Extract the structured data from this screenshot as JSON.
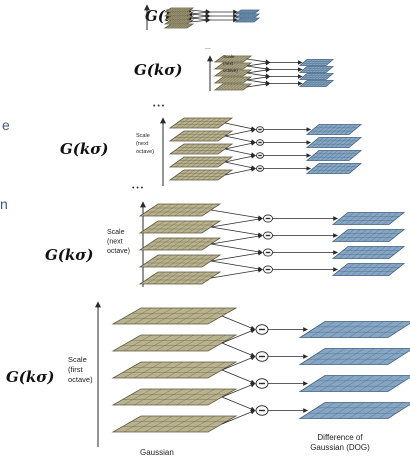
{
  "formula": "G(kσ)",
  "colors": {
    "gaussian_fill": "#b8b28e",
    "gaussian_grid": "#5f5a40",
    "dog_fill": "#86a6c4",
    "dog_grid": "#3f5f80",
    "arrow": "#2a2a2a",
    "minus_circle": "#ffffff"
  },
  "edge_marks": [
    "e",
    "n"
  ],
  "stages": [
    {
      "id": "stage-1",
      "scale_label": [],
      "ellipsis": "",
      "show_minus": false,
      "bottom_left": "",
      "bottom_right": ""
    },
    {
      "id": "stage-2",
      "scale_label": [
        "Scale",
        "(next",
        "octave)"
      ],
      "ellipsis": "...",
      "show_minus": false,
      "bottom_left": "",
      "bottom_right": ""
    },
    {
      "id": "stage-3",
      "scale_label": [
        "Scale",
        "(next",
        "octave)"
      ],
      "ellipsis": "• • •",
      "show_minus": true,
      "bottom_left": "",
      "bottom_right": ""
    },
    {
      "id": "stage-4",
      "scale_label": [
        "Scale",
        "(next",
        "octave)"
      ],
      "ellipsis": "• • •",
      "show_minus": true,
      "bottom_left": "",
      "bottom_right": ""
    },
    {
      "id": "stage-5",
      "scale_label": [
        "Scale",
        "(first",
        "octave)"
      ],
      "ellipsis": "",
      "show_minus": true,
      "bottom_left": "Gaussian",
      "bottom_right": [
        "Difference of",
        "Gaussian (DOG)"
      ]
    }
  ]
}
